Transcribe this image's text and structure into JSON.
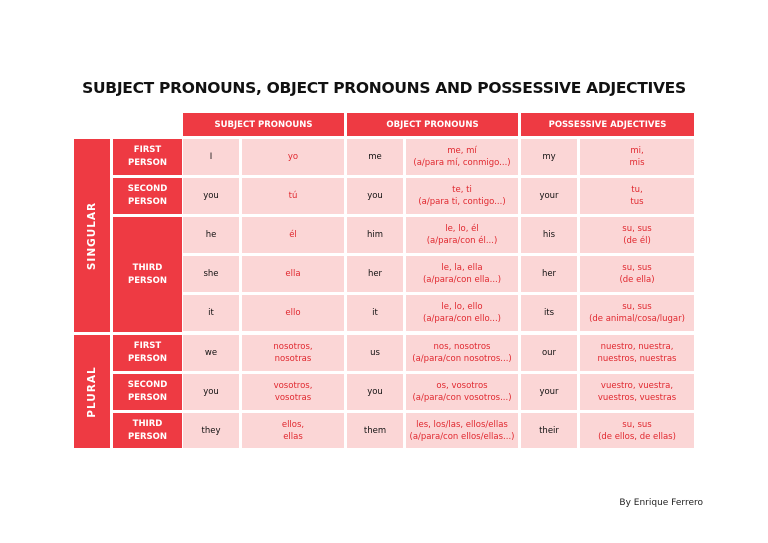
{
  "title": "SUBJECT PRONOUNS, OBJECT PRONOUNS AND POSSESSIVE ADJECTIVES",
  "headers": [
    "SUBJECT PRONOUNS",
    "OBJECT PRONOUNS",
    "POSSESSIVE ADJECTIVES"
  ],
  "groups": [
    "SINGULAR",
    "PLURAL"
  ],
  "persons": [
    "FIRST\nPERSON",
    "SECOND\nPERSON",
    "THIRD\nPERSON",
    "FIRST\nPERSON",
    "SECOND\nPERSON",
    "THIRD\nPERSON"
  ],
  "rows": [
    {
      "subj_en": "I",
      "subj_es": "yo",
      "obj_en": "me",
      "obj_es": "me, mí\n(a/para mí, conmigo...)",
      "poss_en": "my",
      "poss_es": "mi,\nmis"
    },
    {
      "subj_en": "you",
      "subj_es": "tú",
      "obj_en": "you",
      "obj_es": "te, ti\n(a/para ti, contigo...)",
      "poss_en": "your",
      "poss_es": "tu,\ntus"
    },
    {
      "subj_en": "he",
      "subj_es": "él",
      "obj_en": "him",
      "obj_es": "le, lo, él\n(a/para/con él...)",
      "poss_en": "his",
      "poss_es": "su, sus\n(de él)"
    },
    {
      "subj_en": "she",
      "subj_es": "ella",
      "obj_en": "her",
      "obj_es": "le, la, ella\n(a/para/con ella...)",
      "poss_en": "her",
      "poss_es": "su, sus\n(de ella)"
    },
    {
      "subj_en": "it",
      "subj_es": "ello",
      "obj_en": "it",
      "obj_es": "le, lo, ello\n(a/para/con ello...)",
      "poss_en": "its",
      "poss_es": "su, sus\n(de animal/cosa/lugar)"
    },
    {
      "subj_en": "we",
      "subj_es": "nosotros,\nnosotras",
      "obj_en": "us",
      "obj_es": "nos, nosotros\n(a/para/con nosotros...)",
      "poss_en": "our",
      "poss_es": "nuestro, nuestra,\nnuestros, nuestras"
    },
    {
      "subj_en": "you",
      "subj_es": "vosotros,\nvosotras",
      "obj_en": "you",
      "obj_es": "os, vosotros\n(a/para/con vosotros...)",
      "poss_en": "your",
      "poss_es": "vuestro, vuestra,\nvuestros, vuestras"
    },
    {
      "subj_en": "they",
      "subj_es": "ellos,\nellas",
      "obj_en": "them",
      "obj_es": "les, los/las, ellos/ellas\n(a/para/con ellos/ellas...)",
      "poss_en": "their",
      "poss_es": "su, sus\n(de ellos, de ellas)"
    }
  ],
  "credit": "By Enrique Ferrero",
  "colors": {
    "accent": "#ee3a43",
    "cell": "#fbd6d6",
    "spanish_text": "#e0282f"
  }
}
